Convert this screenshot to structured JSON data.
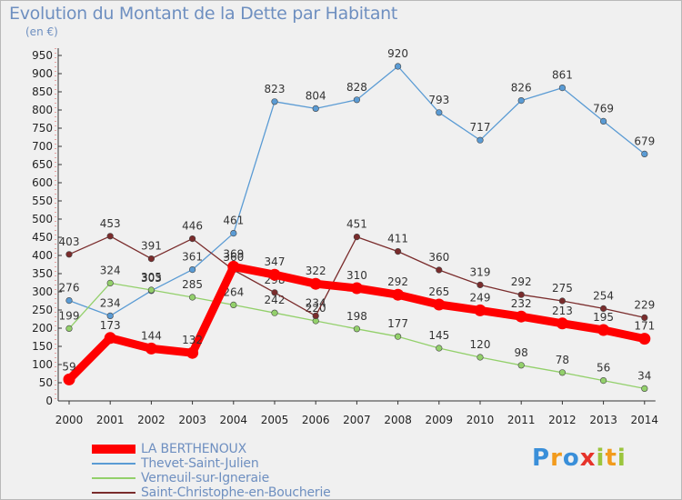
{
  "header": {
    "title": "Evolution du Montant de la Dette par Habitant",
    "subtitle": "(en €)"
  },
  "logo": {
    "text": "Proxiti",
    "colors": [
      "#3a8fd9",
      "#f29b1d",
      "#3a8fd9",
      "#e6332a",
      "#9bc53d",
      "#f29b1d",
      "#9bc53d"
    ]
  },
  "chart_data": {
    "type": "line",
    "title": "Evolution du Montant de la Dette par Habitant",
    "subtitle": "(en €)",
    "xlabel": "",
    "ylabel": "",
    "ylim": [
      0,
      950
    ],
    "ytick_step": 50,
    "grid": false,
    "legend_position": "bottom-left",
    "x": [
      "2000",
      "2001",
      "2002",
      "2003",
      "2004",
      "2005",
      "2006",
      "2007",
      "2008",
      "2009",
      "2010",
      "2011",
      "2012",
      "2013",
      "2014"
    ],
    "series": [
      {
        "name": "LA BERTHENOUX",
        "color": "#ff0000",
        "emphasis": true,
        "values": [
          59,
          173,
          144,
          132,
          369,
          347,
          322,
          310,
          292,
          265,
          249,
          232,
          213,
          195,
          171
        ]
      },
      {
        "name": "Thevet-Saint-Julien",
        "color": "#5a9bd4",
        "emphasis": false,
        "values": [
          276,
          234,
          303,
          361,
          461,
          823,
          804,
          828,
          920,
          793,
          717,
          826,
          861,
          769,
          679
        ]
      },
      {
        "name": "Verneuil-sur-Igneraie",
        "color": "#93d06b",
        "emphasis": false,
        "values": [
          199,
          324,
          305,
          285,
          264,
          242,
          220,
          198,
          177,
          145,
          120,
          98,
          78,
          56,
          34
        ]
      },
      {
        "name": "Saint-Christophe-en-Boucherie",
        "color": "#7a2c2c",
        "emphasis": false,
        "values": [
          403,
          453,
          391,
          446,
          360,
          298,
          234,
          451,
          411,
          360,
          319,
          292,
          275,
          254,
          229
        ]
      }
    ]
  }
}
